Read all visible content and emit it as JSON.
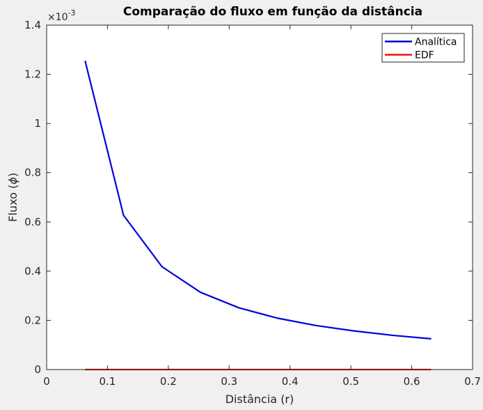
{
  "chart_data": {
    "type": "line",
    "title": "Comparação do fluxo em função da distância",
    "xlabel": "Distância (r)",
    "ylabel_text": "Fluxo (",
    "ylabel_symbol": "ϕ",
    "ylabel_close": ")",
    "y_exponent_base": "×10",
    "y_exponent_power": "-3",
    "xlim": [
      0,
      0.7
    ],
    "ylim": [
      0,
      0.0014
    ],
    "xticks": [
      0,
      0.1,
      0.2,
      0.3,
      0.4,
      0.5,
      0.6,
      0.7
    ],
    "xtick_labels": [
      "0",
      "0.1",
      "0.2",
      "0.3",
      "0.4",
      "0.5",
      "0.6",
      "0.7"
    ],
    "yticks": [
      0,
      0.0002,
      0.0004,
      0.0006,
      0.0008,
      0.001,
      0.0012,
      0.0014
    ],
    "ytick_labels": [
      "0",
      "0.2",
      "0.4",
      "0.6",
      "0.8",
      "1",
      "1.2",
      "1.4"
    ],
    "grid": false,
    "legend_position": "top-right",
    "series": [
      {
        "name": "Analítica",
        "color": "#0000dd",
        "x": [
          0.0632,
          0.1264,
          0.1896,
          0.2528,
          0.316,
          0.3792,
          0.4424,
          0.5056,
          0.5688,
          0.632
        ],
        "y": [
          0.001255,
          0.000627,
          0.000418,
          0.000314,
          0.000251,
          0.000209,
          0.000179,
          0.000157,
          0.000139,
          0.000125
        ]
      },
      {
        "name": "EDF",
        "color": "#ee1111",
        "x": [
          0.0632,
          0.1264,
          0.1896,
          0.2528,
          0.316,
          0.3792,
          0.4424,
          0.5056,
          0.5688,
          0.632
        ],
        "y": [
          0,
          0,
          0,
          0,
          0,
          0,
          0,
          0,
          0,
          0
        ]
      }
    ]
  }
}
